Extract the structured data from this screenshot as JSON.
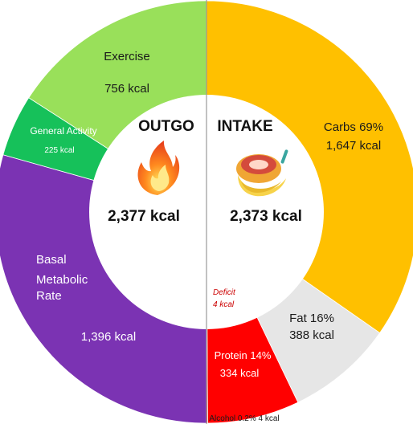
{
  "chart_data": {
    "type": "pie",
    "subtype": "donut",
    "groups": [
      {
        "name": "OUTGO",
        "total_label": "2,377 kcal",
        "total": 2377,
        "slices": [
          {
            "name": "Basal Metabolic Rate",
            "value_label": "1,396 kcal",
            "value": 1396,
            "color": "#7b33b3"
          },
          {
            "name": "General Activity",
            "value_label": "225 kcal",
            "value": 225,
            "color": "#16c15a"
          },
          {
            "name": "Exercise",
            "value_label": "756 kcal",
            "value": 756,
            "color": "#99e05a"
          }
        ]
      },
      {
        "name": "INTAKE",
        "total_label": "2,373 kcal",
        "total": 2373,
        "slices": [
          {
            "name": "Carbs",
            "percent_label": "69%",
            "value_label": "1,647 kcal",
            "value": 1647,
            "color": "#ffc000"
          },
          {
            "name": "Fat",
            "percent_label": "16%",
            "value_label": "388 kcal",
            "value": 388,
            "color": "#e6e6e6"
          },
          {
            "name": "Protein",
            "percent_label": "14%",
            "value_label": "334 kcal",
            "value": 334,
            "color": "#ff0000"
          },
          {
            "name": "Alcohol",
            "percent_label": "0.2%",
            "value_label": "4 kcal",
            "value": 4,
            "color": "#c00000"
          }
        ]
      }
    ],
    "deficit": {
      "label": "Deficit",
      "value_label": "4 kcal",
      "value": 4
    }
  },
  "labels": {
    "exercise_name": "Exercise",
    "exercise_value": "756 kcal",
    "general_name": "General Activity",
    "general_value": "225 kcal",
    "bmr_line1": "Basal",
    "bmr_line2": "Metabolic",
    "bmr_line3": "Rate",
    "bmr_value": "1,396 kcal",
    "carbs_name": "Carbs 69%",
    "carbs_value": "1,647 kcal",
    "fat_name": "Fat 16%",
    "fat_value": "388 kcal",
    "protein_name": "Protein 14%",
    "protein_value": "334 kcal",
    "alcohol_line": "Alcohol 0.2% 4 kcal",
    "deficit_line1": "Deficit",
    "deficit_line2": "4 kcal",
    "outgo_head": "OUTGO",
    "intake_head": "INTAKE",
    "outgo_total": "2,377 kcal",
    "intake_total": "2,373 kcal"
  },
  "icons": {
    "outgo": "fire-icon",
    "intake": "food-icon"
  }
}
